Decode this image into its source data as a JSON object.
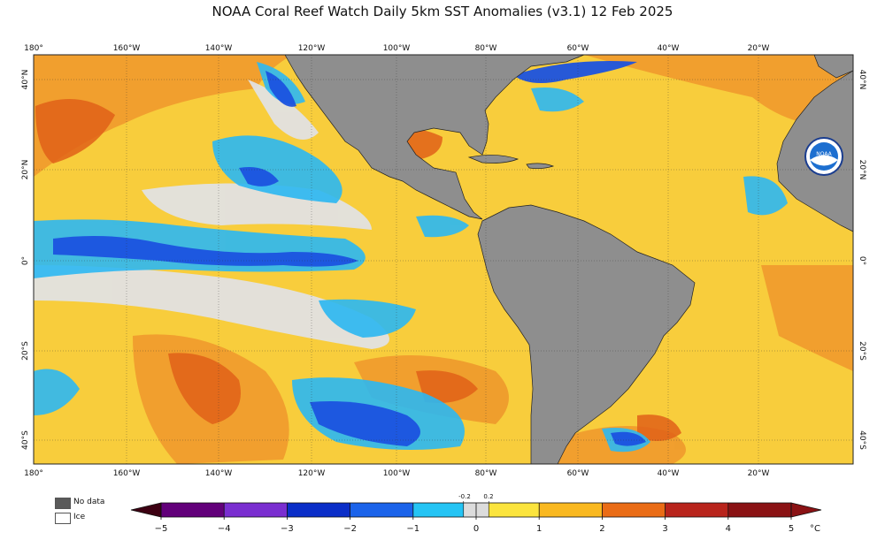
{
  "title": "NOAA Coral Reef Watch Daily 5km SST Anomalies  (v3.1)    12 Feb 2025",
  "lon_labels": [
    "180°",
    "160°W",
    "140°W",
    "120°W",
    "100°W",
    "80°W",
    "60°W",
    "40°W",
    "20°W"
  ],
  "lat_labels": [
    "40°N",
    "20°N",
    "0°",
    "20°S",
    "40°S"
  ],
  "lat_labels_right": [
    "40°N",
    "20°N",
    "0°",
    "20°S",
    "40°S"
  ],
  "legend": {
    "no_data": "No data",
    "ice": "Ice",
    "no_data_color": "#5a5a5a",
    "ice_color": "#ffffff"
  },
  "colorbar": {
    "ticks": [
      "−5",
      "−4",
      "−3",
      "−2",
      "−1",
      "0",
      "1",
      "2",
      "3",
      "4",
      "5"
    ],
    "small_ticks": [
      "-0.2",
      "0.2"
    ],
    "unit": "°C",
    "colors": [
      "#3d0012",
      "#62007a",
      "#7a2ed0",
      "#3b4fd8",
      "#0a2ec8",
      "#1b63ea",
      "#25c4f4",
      "#dcdcdc",
      "#fbe43d",
      "#f9b820",
      "#f39418",
      "#ea6c16",
      "#d9441a",
      "#b8241c",
      "#8a1214"
    ]
  },
  "map_colors": {
    "land": "#8e8e8e",
    "ocean_warm": "#f7c63a",
    "ocean_hot": "#ea7a2a",
    "ocean_neutral": "#e0e0e0",
    "ocean_cool": "#2ab6f2",
    "ocean_cold": "#1c58e2"
  },
  "logo_text": "NOAA"
}
